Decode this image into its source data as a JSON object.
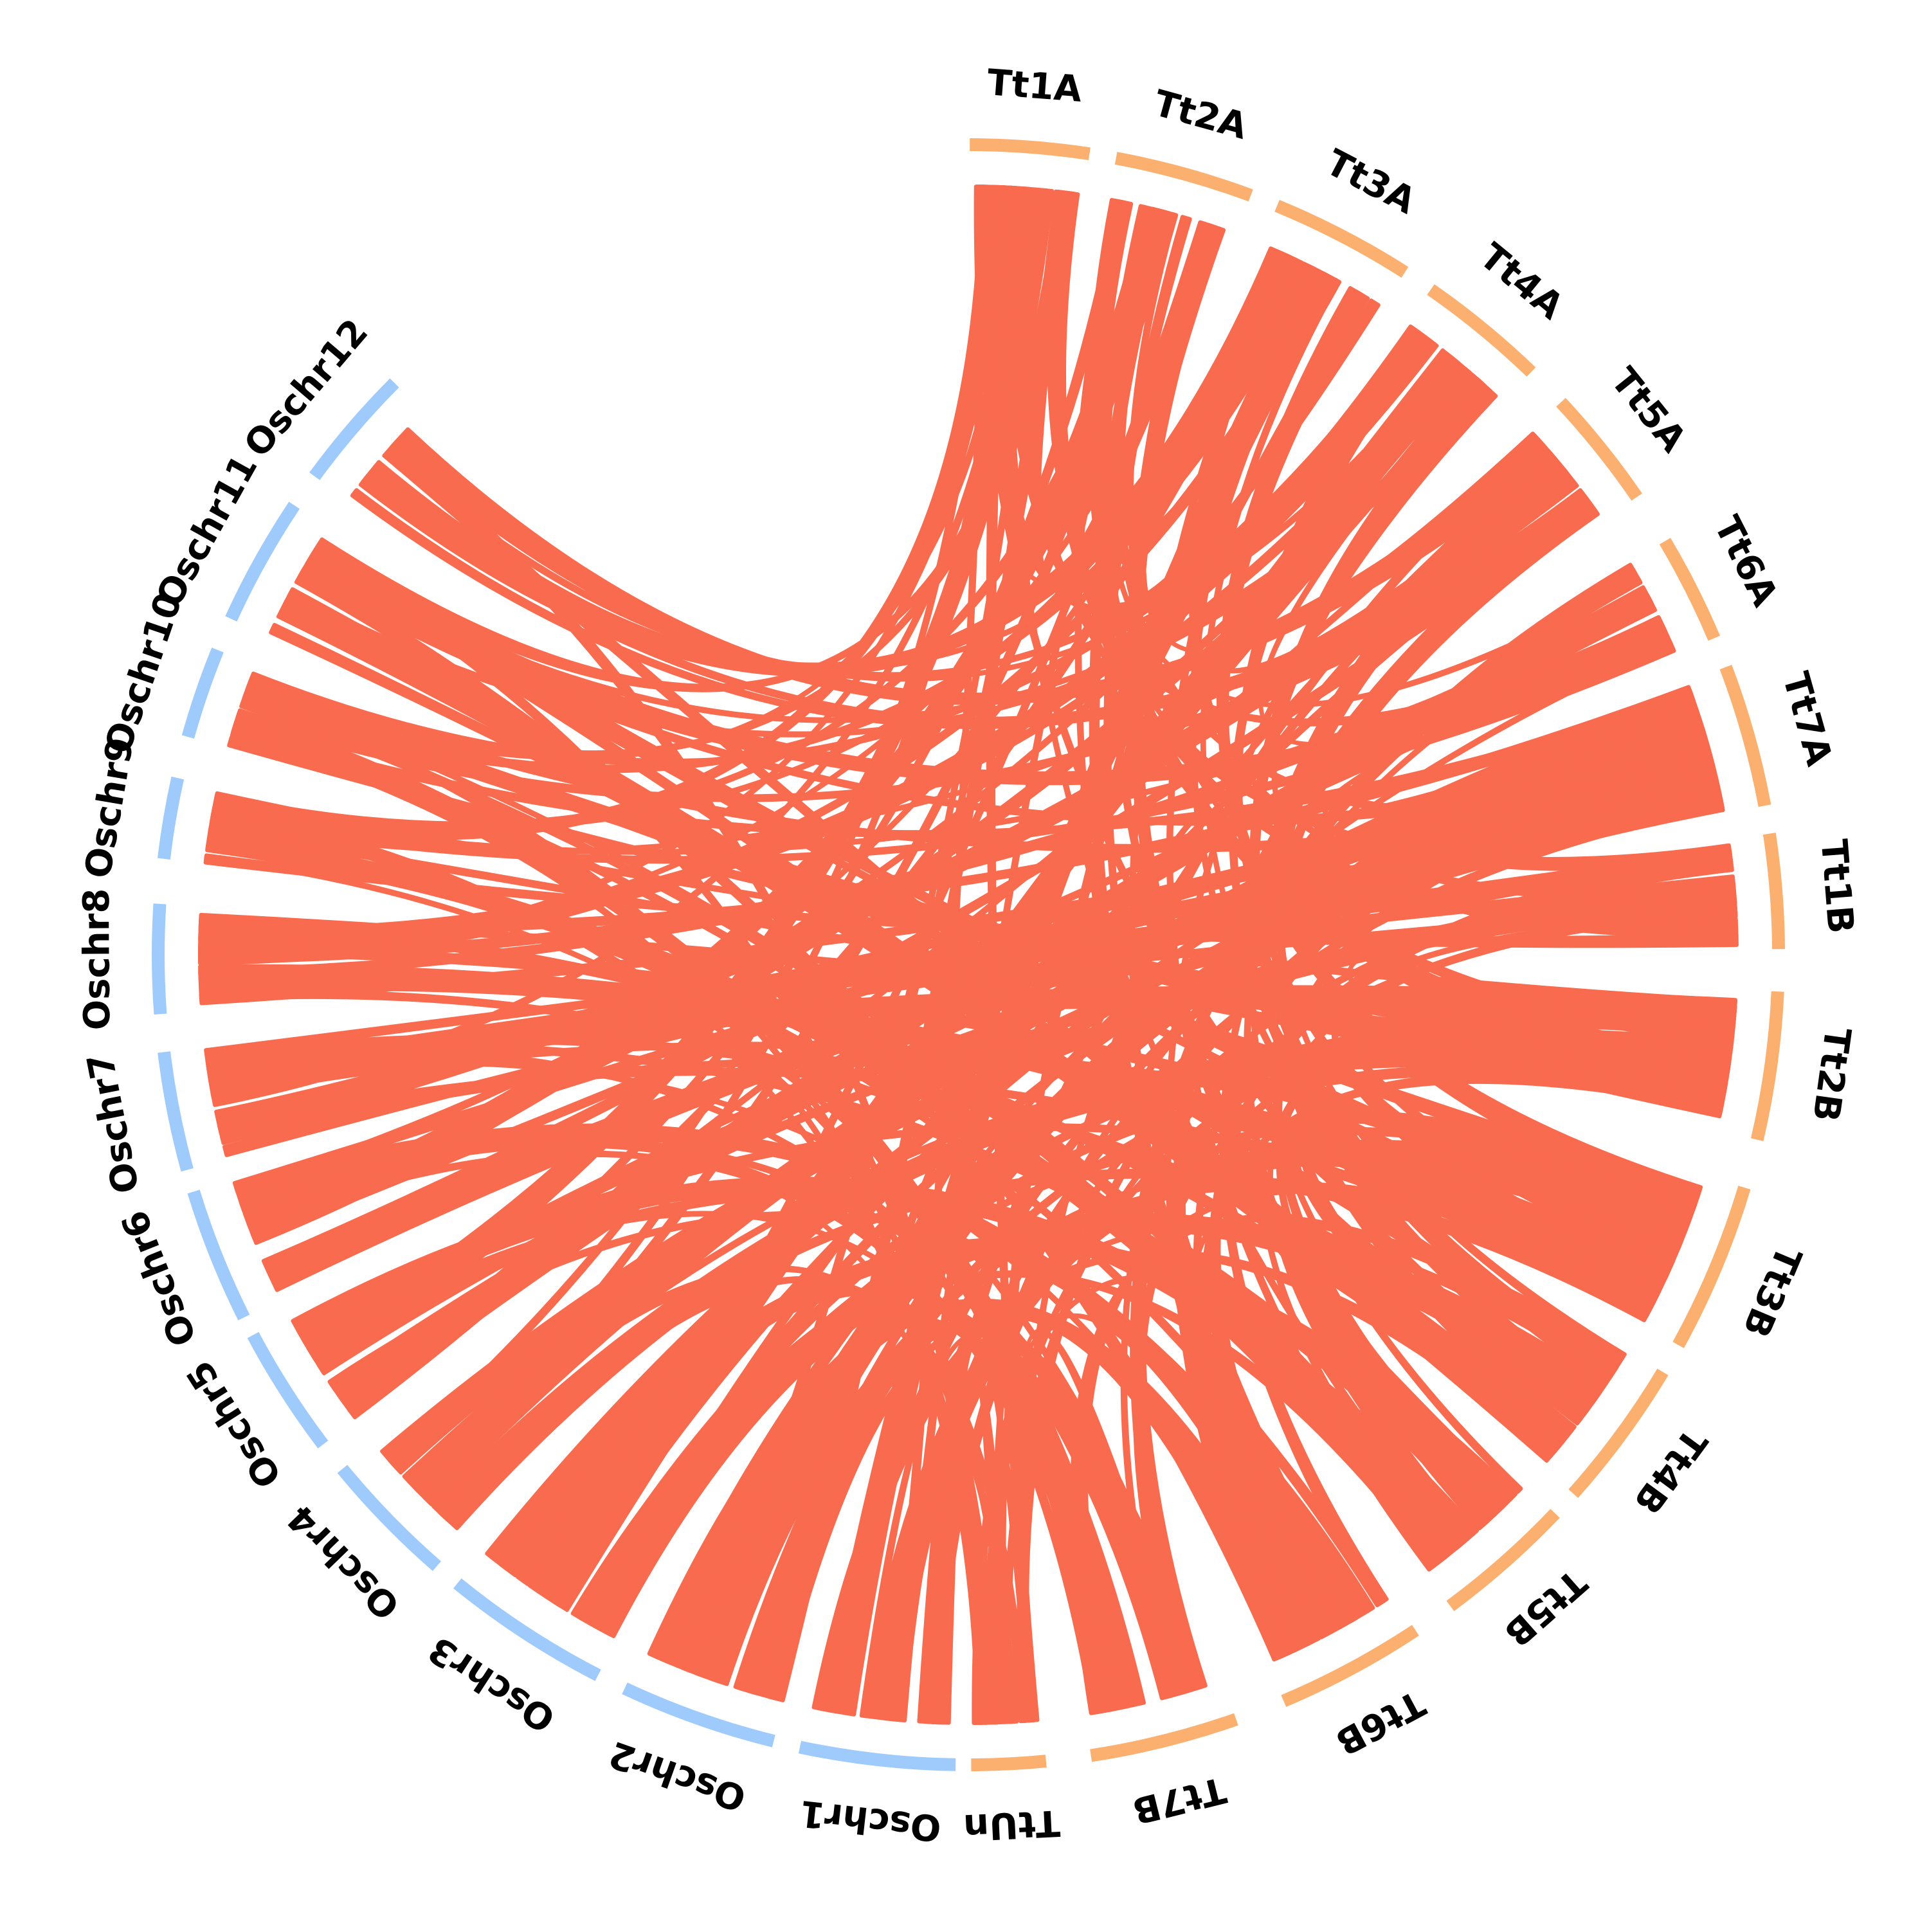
{
  "diagram": {
    "type": "circos-synteny",
    "colors": {
      "rice_chromosome": "#9ecbfb",
      "wheat_chromosome": "#fbb06f",
      "link": "#f96b4e",
      "label": "#000000"
    },
    "chromosomes": [
      {
        "id": "Tt1A",
        "label": "Tt1A",
        "group": "wheat",
        "start": 0.1,
        "end": 8.6
      },
      {
        "id": "Tt2A",
        "label": "Tt2A",
        "group": "wheat",
        "start": 10.5,
        "end": 20.4
      },
      {
        "id": "Tt3A",
        "label": "Tt3A",
        "group": "wheat",
        "start": 22.4,
        "end": 32.6
      },
      {
        "id": "Tt4A",
        "label": "Tt4A",
        "group": "wheat",
        "start": 34.8,
        "end": 44.0
      },
      {
        "id": "Tt5A",
        "label": "Tt5A",
        "group": "wheat",
        "start": 47.0,
        "end": 55.6
      },
      {
        "id": "Tt6A",
        "label": "Tt6A",
        "group": "wheat",
        "start": 59.3,
        "end": 67.0
      },
      {
        "id": "Tt7A",
        "label": "Tt7A",
        "group": "wheat",
        "start": 69.2,
        "end": 79.4
      },
      {
        "id": "Tt1B",
        "label": "Tt1B",
        "group": "wheat",
        "start": 81.4,
        "end": 89.6
      },
      {
        "id": "Tt2B",
        "label": "Tt2B",
        "group": "wheat",
        "start": 92.6,
        "end": 103.2
      },
      {
        "id": "Tt3B",
        "label": "Tt3B",
        "group": "wheat",
        "start": 106.7,
        "end": 118.8
      },
      {
        "id": "Tt4B",
        "label": "Tt4B",
        "group": "wheat",
        "start": 121.0,
        "end": 131.7
      },
      {
        "id": "Tt5B",
        "label": "Tt5B",
        "group": "wheat",
        "start": 133.6,
        "end": 143.5
      },
      {
        "id": "Tt6B",
        "label": "Tt6B",
        "group": "wheat",
        "start": 146.5,
        "end": 157.1
      },
      {
        "id": "Tt7B",
        "label": "Tt7B",
        "group": "wheat",
        "start": 160.7,
        "end": 171.3
      },
      {
        "id": "TtUn",
        "label": "TtUn",
        "group": "wheat",
        "start": 174.5,
        "end": 179.8
      },
      {
        "id": "Oschr1",
        "label": "Oschr1",
        "group": "rice",
        "start": 180.9,
        "end": 192.0
      },
      {
        "id": "Oschr2",
        "label": "Oschr2",
        "group": "rice",
        "start": 193.9,
        "end": 205.1
      },
      {
        "id": "Oschr3",
        "label": "Oschr3",
        "group": "rice",
        "start": 207.2,
        "end": 219.1
      },
      {
        "id": "Oschr4",
        "label": "Oschr4",
        "group": "rice",
        "start": 221.0,
        "end": 230.6
      },
      {
        "id": "Oschr5",
        "label": "Oschr5",
        "group": "rice",
        "start": 232.8,
        "end": 242.0
      },
      {
        "id": "Oschr6",
        "label": "Oschr6",
        "group": "rice",
        "start": 243.4,
        "end": 253.0
      },
      {
        "id": "Oschr7",
        "label": "Oschr7",
        "group": "rice",
        "start": 254.6,
        "end": 263.1
      },
      {
        "id": "Oschr8",
        "label": "Oschr8",
        "group": "rice",
        "start": 265.8,
        "end": 273.6
      },
      {
        "id": "Oschr9",
        "label": "Oschr9",
        "group": "rice",
        "start": 276.8,
        "end": 282.6
      },
      {
        "id": "Oschr10",
        "label": "Oschr10",
        "group": "rice",
        "start": 285.6,
        "end": 292.1
      },
      {
        "id": "Oschr11",
        "label": "Oschr11",
        "group": "rice",
        "start": 294.5,
        "end": 303.7
      },
      {
        "id": "Oschr12",
        "label": "Oschr12",
        "group": "rice",
        "start": 306.2,
        "end": 314.9
      }
    ],
    "links": [
      [
        "Oschr1",
        0.15,
        "TtUn",
        0.5,
        0.2
      ],
      [
        "Oschr1",
        0.5,
        "Tt3B",
        0.3,
        0.25
      ],
      [
        "Oschr1",
        0.8,
        "Tt3A",
        0.5,
        0.22
      ],
      [
        "Oschr2",
        0.2,
        "Tt7B",
        0.3,
        0.25
      ],
      [
        "Oschr2",
        0.6,
        "Tt7A",
        0.5,
        0.3
      ],
      [
        "Oschr2",
        0.85,
        "Tt6B",
        0.7,
        0.2
      ],
      [
        "Oschr3",
        0.15,
        "Tt4B",
        0.4,
        0.25
      ],
      [
        "Oschr3",
        0.5,
        "Tt4A",
        0.5,
        0.28
      ],
      [
        "Oschr3",
        0.85,
        "Tt5B",
        0.2,
        0.2
      ],
      [
        "Oschr4",
        0.2,
        "Tt2B",
        0.5,
        0.25
      ],
      [
        "Oschr4",
        0.5,
        "Tt7A",
        0.2,
        0.3
      ],
      [
        "Oschr4",
        0.8,
        "Tt1B",
        0.5,
        0.22
      ],
      [
        "Oschr5",
        0.2,
        "Tt6A",
        0.4,
        0.25
      ],
      [
        "Oschr5",
        0.6,
        "Tt1A",
        0.6,
        0.25
      ],
      [
        "Oschr5",
        0.85,
        "Tt5B",
        0.6,
        0.2
      ],
      [
        "Oschr6",
        0.2,
        "Tt7A",
        0.8,
        0.25
      ],
      [
        "Oschr6",
        0.6,
        "Tt2A",
        0.4,
        0.25
      ],
      [
        "Oschr6",
        0.85,
        "Tt6B",
        0.3,
        0.2
      ],
      [
        "Oschr7",
        0.3,
        "Tt5A",
        0.5,
        0.25
      ],
      [
        "Oschr7",
        0.7,
        "Tt2B",
        0.2,
        0.25
      ],
      [
        "Oschr8",
        0.3,
        "Tt3B",
        0.7,
        0.25
      ],
      [
        "Oschr8",
        0.7,
        "Tt4A",
        0.2,
        0.2
      ],
      [
        "Oschr9",
        0.3,
        "Tt5B",
        0.8,
        0.25
      ],
      [
        "Oschr9",
        0.7,
        "Tt1A",
        0.2,
        0.2
      ],
      [
        "Oschr10",
        0.3,
        "Tt7B",
        0.7,
        0.25
      ],
      [
        "Oschr10",
        0.7,
        "Tt2B",
        0.8,
        0.2
      ],
      [
        "Oschr11",
        0.3,
        "Tt4B",
        0.8,
        0.25
      ],
      [
        "Oschr11",
        0.7,
        "Tt6A",
        0.8,
        0.2
      ],
      [
        "Oschr12",
        0.3,
        "Tt3A",
        0.2,
        0.25
      ],
      [
        "Oschr12",
        0.7,
        "Tt5A",
        0.2,
        0.2
      ],
      [
        "Tt1A",
        0.85,
        "Tt1B",
        0.8,
        0.15
      ],
      [
        "Tt2A",
        0.8,
        "Tt5B",
        0.4,
        0.15
      ],
      [
        "Tt3A",
        0.8,
        "Tt3B",
        0.15,
        0.15
      ],
      [
        "Tt4A",
        0.8,
        "Tt4B",
        0.2,
        0.15
      ],
      [
        "Tt5A",
        0.8,
        "Tt6B",
        0.85,
        0.15
      ],
      [
        "Tt6A",
        0.15,
        "Tt7B",
        0.2,
        0.15
      ],
      [
        "Tt7A",
        0.6,
        "TtUn",
        0.2,
        0.12
      ],
      [
        "Tt1B",
        0.2,
        "Tt6B",
        0.5,
        0.15
      ],
      [
        "Tt2A",
        0.1,
        "Tt2B",
        0.6,
        0.15
      ]
    ]
  }
}
